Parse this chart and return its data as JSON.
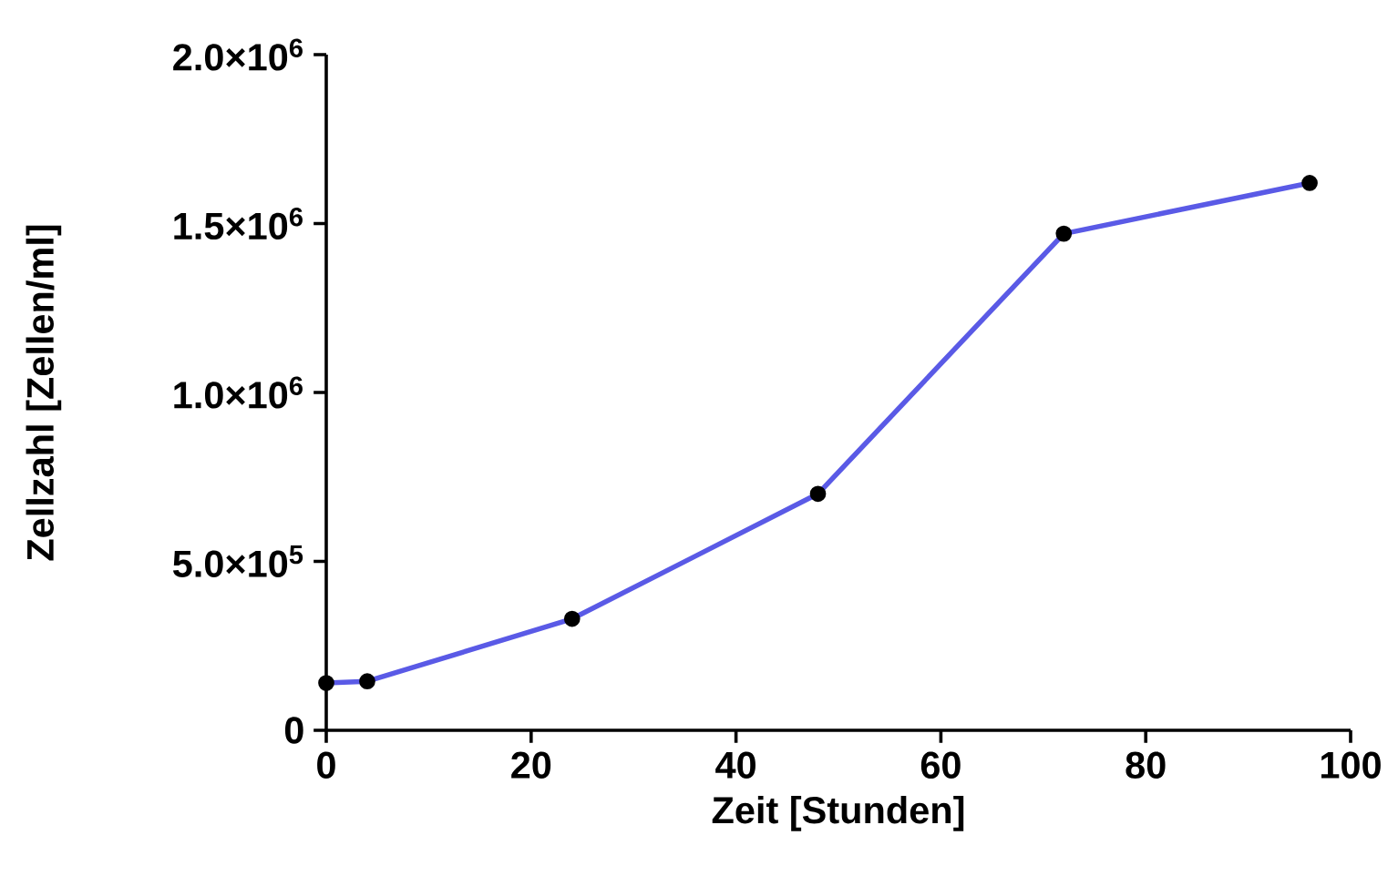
{
  "chart_data": {
    "type": "line",
    "xlabel": "Zeit [Stunden]",
    "ylabel": "Zellzahl [Zellen/ml]",
    "x": [
      0,
      4,
      24,
      48,
      72,
      96
    ],
    "series": [
      {
        "color": "#5a5ae6",
        "values": [
          140000,
          145000,
          330000,
          700000,
          1470000,
          1620000
        ]
      }
    ],
    "xlim": [
      0,
      100
    ],
    "xticks": [
      0,
      20,
      40,
      60,
      80,
      100
    ],
    "ylim": [
      0,
      2000000
    ],
    "yticks": [
      {
        "value": 0,
        "label": "0"
      },
      {
        "value": 500000,
        "label": "5.0×10$^{5}$"
      },
      {
        "value": 1000000,
        "label": "1.0×10$^{6}$"
      },
      {
        "value": 1500000,
        "label": "1.5×10$^{6}$"
      },
      {
        "value": 2000000,
        "label": "2.0×10$^{6}$"
      }
    ],
    "marker": "circle",
    "grid": false
  }
}
